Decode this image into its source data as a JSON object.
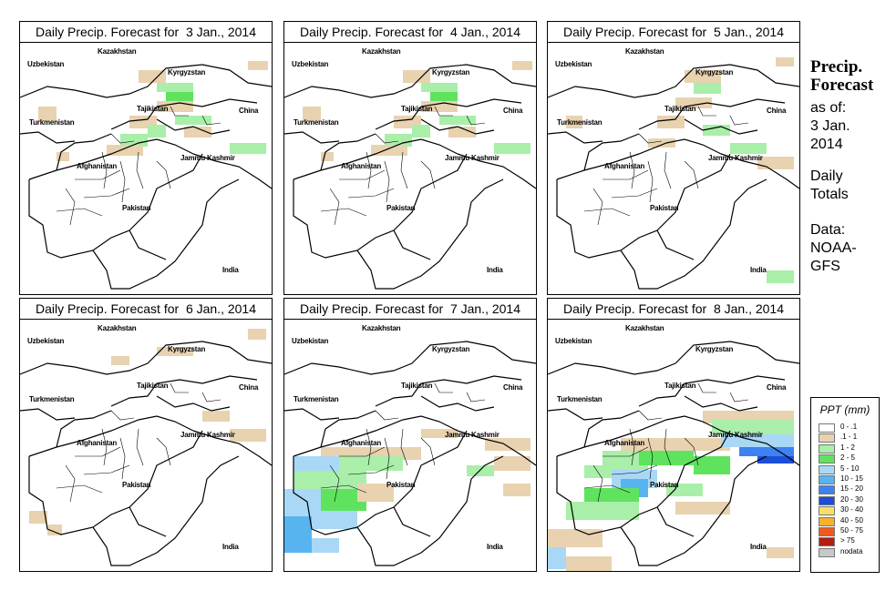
{
  "panels": [
    {
      "title": "Daily Precip. Forecast for  3 Jan., 2014",
      "precip_level": "light-north"
    },
    {
      "title": "Daily Precip. Forecast for  4 Jan., 2014",
      "precip_level": "light-north"
    },
    {
      "title": "Daily Precip. Forecast for  5 Jan., 2014",
      "precip_level": "light-north-east"
    },
    {
      "title": "Daily Precip. Forecast for  6 Jan., 2014",
      "precip_level": "trace"
    },
    {
      "title": "Daily Precip. Forecast for  7 Jan., 2014",
      "precip_level": "moderate-southwest"
    },
    {
      "title": "Daily Precip. Forecast for  8 Jan., 2014",
      "precip_level": "heavy-east"
    }
  ],
  "map_labels": {
    "kazakhstan": "Kazakhstan",
    "uzbekistan": "Uzbekistan",
    "kyrgyzstan": "Kyrgyzstan",
    "tajikistan": "Tajikistan",
    "china": "China",
    "turkmenistan": "Turkmenistan",
    "jammu_kashmir": "Jammu Kashmir",
    "afghanistan": "Afghanistan",
    "pakistan": "Pakistan",
    "india": "India"
  },
  "sidebar": {
    "heading_line1": "Precip.",
    "heading_line2": "Forecast",
    "asof_line1": "as of:",
    "asof_line2": "3 Jan.",
    "asof_line3": "2014",
    "totals_line1": "Daily",
    "totals_line2": "Totals",
    "data_line1": "Data:",
    "data_line2": "NOAA-",
    "data_line3": "GFS"
  },
  "legend": {
    "title": "PPT (mm)",
    "items": [
      {
        "label": "0 - .1",
        "color": "#ffffff"
      },
      {
        "label": ".1 - 1",
        "color": "#e8d2b0"
      },
      {
        "label": "1 - 2",
        "color": "#a9efa9"
      },
      {
        "label": "2 - 5",
        "color": "#5fe35f"
      },
      {
        "label": "5 - 10",
        "color": "#a9d8f7"
      },
      {
        "label": "10 - 15",
        "color": "#58b4ef"
      },
      {
        "label": "15 - 20",
        "color": "#3d82f0"
      },
      {
        "label": "20 - 30",
        "color": "#1c4fd8"
      },
      {
        "label": "30 - 40",
        "color": "#f4e06a"
      },
      {
        "label": "40 - 50",
        "color": "#f7b12a"
      },
      {
        "label": "50 - 75",
        "color": "#ef5a1a"
      },
      {
        "label": "> 75",
        "color": "#b41e10"
      },
      {
        "label": "nodata",
        "color": "#c8c8c8"
      }
    ]
  }
}
